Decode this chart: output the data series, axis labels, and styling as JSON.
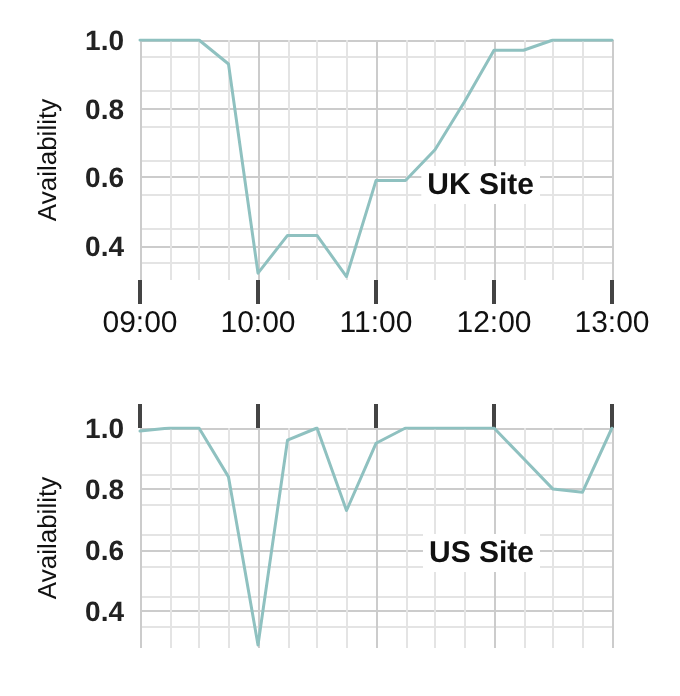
{
  "chart_data": [
    {
      "type": "line",
      "ylabel": "Availability",
      "annotations": [
        "UK Site"
      ],
      "x": [
        9,
        9.25,
        9.5,
        9.75,
        10,
        10.25,
        10.5,
        10.75,
        11,
        11.25,
        11.5,
        11.75,
        12,
        12.25,
        12.5,
        12.75,
        13
      ],
      "series": [
        {
          "color": "#8fc1c0",
          "values": [
            1.0,
            1.0,
            1.0,
            0.93,
            0.32,
            0.43,
            0.43,
            0.31,
            0.59,
            0.59,
            0.68,
            0.82,
            0.97,
            0.97,
            1.0,
            1.0,
            1.0
          ]
        }
      ],
      "xlim": [
        9,
        13
      ],
      "xticks": [
        {
          "value": 9,
          "label": "09:00"
        },
        {
          "value": 10,
          "label": "10:00"
        },
        {
          "value": 11,
          "label": "11:00"
        },
        {
          "value": 12,
          "label": "12:00"
        },
        {
          "value": 13,
          "label": "13:00"
        }
      ],
      "ylim": [
        0.3,
        1.0
      ],
      "yticks": [
        0.4,
        0.6,
        0.8,
        {
          "value": 1,
          "label": "1.0"
        }
      ],
      "grid": true,
      "marker": "none",
      "line_style": "solid"
    },
    {
      "type": "line",
      "ylabel": "Availability",
      "annotations": [
        "US Site"
      ],
      "x": [
        9,
        9.25,
        9.5,
        9.75,
        10,
        10.25,
        10.5,
        10.75,
        11,
        11.25,
        11.5,
        11.75,
        12,
        12.25,
        12.5,
        12.75,
        13
      ],
      "series": [
        {
          "color": "#8fc1c0",
          "values": [
            0.99,
            1.0,
            1.0,
            0.84,
            0.29,
            0.96,
            1.0,
            0.73,
            0.95,
            1.0,
            1.0,
            1.0,
            1.0,
            0.9,
            0.8,
            0.79,
            1.0
          ]
        }
      ],
      "xlim": [
        9,
        13
      ],
      "xticks": [
        {
          "value": 9,
          "label": null
        },
        {
          "value": 10,
          "label": null
        },
        {
          "value": 11,
          "label": null
        },
        {
          "value": 12,
          "label": null
        },
        {
          "value": 13,
          "label": null
        }
      ],
      "ylim": [
        0.28,
        1.0
      ],
      "yticks": [
        0.4,
        0.6,
        0.8,
        {
          "value": 1,
          "label": "1.0"
        }
      ],
      "grid": true,
      "marker": "none",
      "line_style": "solid",
      "tick_labels": "y"
    }
  ]
}
